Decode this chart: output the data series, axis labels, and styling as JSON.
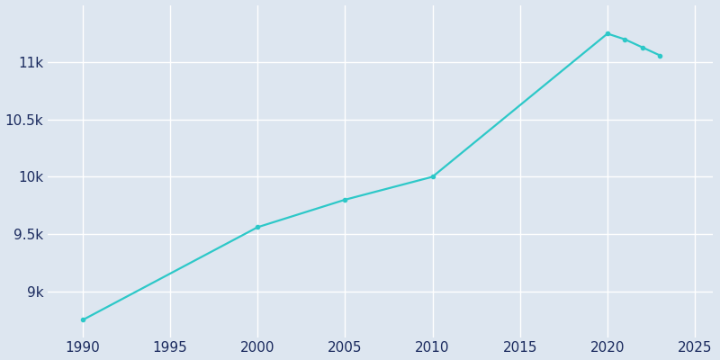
{
  "years": [
    1990,
    2000,
    2005,
    2010,
    2020,
    2021,
    2022,
    2023
  ],
  "population": [
    8750,
    9560,
    9800,
    10000,
    11250,
    11200,
    11130,
    11060
  ],
  "line_color": "#2dc8c8",
  "marker": "o",
  "marker_size": 3,
  "line_width": 1.6,
  "bg_color": "#dde6f0",
  "grid_color": "#ffffff",
  "tick_color": "#1a2a5e",
  "xlim": [
    1988,
    2026
  ],
  "ylim": [
    8600,
    11500
  ],
  "yticks": [
    9000,
    9500,
    10000,
    10500,
    11000
  ],
  "ytick_labels": [
    "9k",
    "9.5k",
    "10k",
    "10.5k",
    "11k"
  ],
  "xticks": [
    1990,
    1995,
    2000,
    2005,
    2010,
    2015,
    2020,
    2025
  ],
  "tick_fontsize": 11
}
